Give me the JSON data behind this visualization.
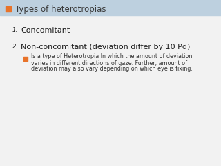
{
  "title": "Types of heterotropias",
  "title_checkbox_color": "#E8732A",
  "title_bg_color": "#BDD0DF",
  "title_text_color": "#3a3a3a",
  "bg_color": "#F2F2F2",
  "item1_num": "1.",
  "item1_text": "Concomitant",
  "item2_num": "2.",
  "item2_text": "Non-concomitant (deviation differ by 10 Pd)",
  "bullet_color": "#E8732A",
  "bullet_text_line1": "Is a type of Heterotropia In which the amount of deviation",
  "bullet_text_line2": "varies in different directions of gaze. Further, amount of",
  "bullet_text_line3": "deviation may also vary depending on which eye is fixing.",
  "item_text_color": "#1a1a1a",
  "bullet_text_color": "#333333",
  "title_fontsize": 8.5,
  "item1_fontsize": 8.0,
  "item2_fontsize": 8.0,
  "bullet_fontsize": 5.8
}
